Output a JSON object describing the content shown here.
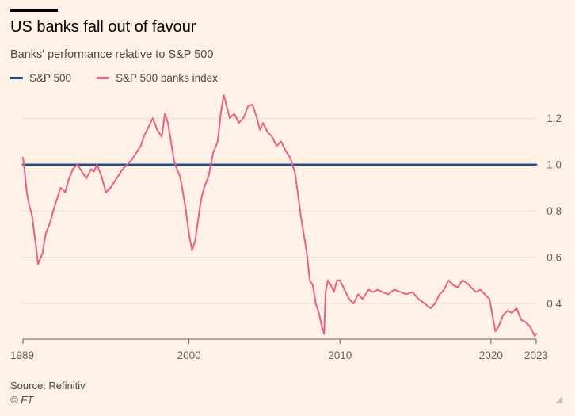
{
  "header": {
    "title": "US banks fall out of favour",
    "subtitle": "Banks' performance relative to S&P 500"
  },
  "footer": {
    "source": "Source: Refinitiv",
    "credit": "© FT"
  },
  "colors": {
    "background": "#FFF1E5",
    "sp500": "#1F4E8C",
    "banks": "#E8608A",
    "grid": "#E9DED5",
    "text": "#66605C"
  },
  "chart_data": {
    "type": "line",
    "x_range": [
      1989.0,
      2023.0
    ],
    "ylim": [
      0.25,
      1.3
    ],
    "y_ticks": [
      0.4,
      0.6,
      0.8,
      1.0,
      1.2
    ],
    "y_tick_labels": [
      "0.4",
      "0.6",
      "0.8",
      "1.0",
      "1.2"
    ],
    "x_ticks": [
      1989,
      2000,
      2010,
      2020,
      2023
    ],
    "x_tick_labels": [
      "1989",
      "2000",
      "2010",
      "2020",
      "2023"
    ],
    "grid": "horizontal",
    "legend_position": "top-left",
    "series": [
      {
        "name": "S&P 500",
        "x": [
          1989.0,
          2023.0
        ],
        "values": [
          1.0,
          1.0
        ]
      },
      {
        "name": "S&P 500 banks index",
        "x": [
          1989.0,
          1989.1,
          1989.25,
          1989.4,
          1989.6,
          1989.8,
          1990.0,
          1990.3,
          1990.5,
          1990.8,
          1991.0,
          1991.3,
          1991.5,
          1991.8,
          1992.0,
          1992.3,
          1992.6,
          1992.9,
          1993.2,
          1993.5,
          1993.7,
          1993.9,
          1994.2,
          1994.5,
          1994.8,
          1995.0,
          1995.3,
          1995.6,
          1995.9,
          1996.2,
          1996.5,
          1996.8,
          1997.0,
          1997.3,
          1997.6,
          1997.9,
          1998.2,
          1998.4,
          1998.6,
          1998.8,
          1999.0,
          1999.2,
          1999.4,
          1999.6,
          1999.8,
          2000.0,
          2000.2,
          2000.4,
          2000.6,
          2000.8,
          2001.0,
          2001.3,
          2001.6,
          2001.9,
          2002.1,
          2002.3,
          2002.5,
          2002.7,
          2003.0,
          2003.3,
          2003.6,
          2003.9,
          2004.2,
          2004.5,
          2004.7,
          2004.9,
          2005.2,
          2005.5,
          2005.8,
          2006.1,
          2006.4,
          2006.7,
          2007.0,
          2007.2,
          2007.4,
          2007.6,
          2007.8,
          2008.0,
          2008.2,
          2008.4,
          2008.6,
          2008.8,
          2008.95,
          2009.05,
          2009.2,
          2009.4,
          2009.6,
          2009.8,
          2010.0,
          2010.3,
          2010.6,
          2010.9,
          2011.2,
          2011.5,
          2011.7,
          2011.9,
          2012.2,
          2012.5,
          2012.8,
          2013.2,
          2013.6,
          2014.0,
          2014.4,
          2014.8,
          2015.2,
          2015.6,
          2016.0,
          2016.3,
          2016.6,
          2016.9,
          2017.2,
          2017.5,
          2017.8,
          2018.1,
          2018.4,
          2018.7,
          2019.0,
          2019.3,
          2019.6,
          2019.9,
          2020.1,
          2020.3,
          2020.5,
          2020.8,
          2021.1,
          2021.4,
          2021.7,
          2022.0,
          2022.3,
          2022.6,
          2022.9,
          2023.0
        ],
        "values": [
          1.03,
          0.98,
          0.88,
          0.83,
          0.78,
          0.68,
          0.57,
          0.62,
          0.7,
          0.75,
          0.8,
          0.86,
          0.9,
          0.88,
          0.93,
          0.98,
          1.0,
          0.97,
          0.94,
          0.98,
          0.97,
          1.0,
          0.95,
          0.88,
          0.9,
          0.92,
          0.95,
          0.98,
          1.0,
          1.02,
          1.05,
          1.08,
          1.12,
          1.16,
          1.2,
          1.15,
          1.12,
          1.22,
          1.18,
          1.1,
          1.02,
          0.98,
          0.95,
          0.88,
          0.8,
          0.7,
          0.63,
          0.67,
          0.76,
          0.85,
          0.9,
          0.95,
          1.05,
          1.1,
          1.22,
          1.3,
          1.25,
          1.2,
          1.22,
          1.18,
          1.2,
          1.25,
          1.26,
          1.2,
          1.15,
          1.18,
          1.14,
          1.12,
          1.08,
          1.1,
          1.06,
          1.03,
          0.97,
          0.88,
          0.78,
          0.7,
          0.62,
          0.5,
          0.48,
          0.4,
          0.36,
          0.3,
          0.27,
          0.45,
          0.5,
          0.48,
          0.45,
          0.5,
          0.5,
          0.46,
          0.42,
          0.4,
          0.44,
          0.42,
          0.44,
          0.46,
          0.45,
          0.46,
          0.45,
          0.44,
          0.46,
          0.45,
          0.44,
          0.45,
          0.42,
          0.4,
          0.38,
          0.4,
          0.44,
          0.46,
          0.5,
          0.48,
          0.47,
          0.5,
          0.49,
          0.47,
          0.45,
          0.46,
          0.44,
          0.42,
          0.35,
          0.28,
          0.3,
          0.35,
          0.37,
          0.36,
          0.38,
          0.33,
          0.32,
          0.3,
          0.26,
          0.27
        ]
      }
    ]
  }
}
